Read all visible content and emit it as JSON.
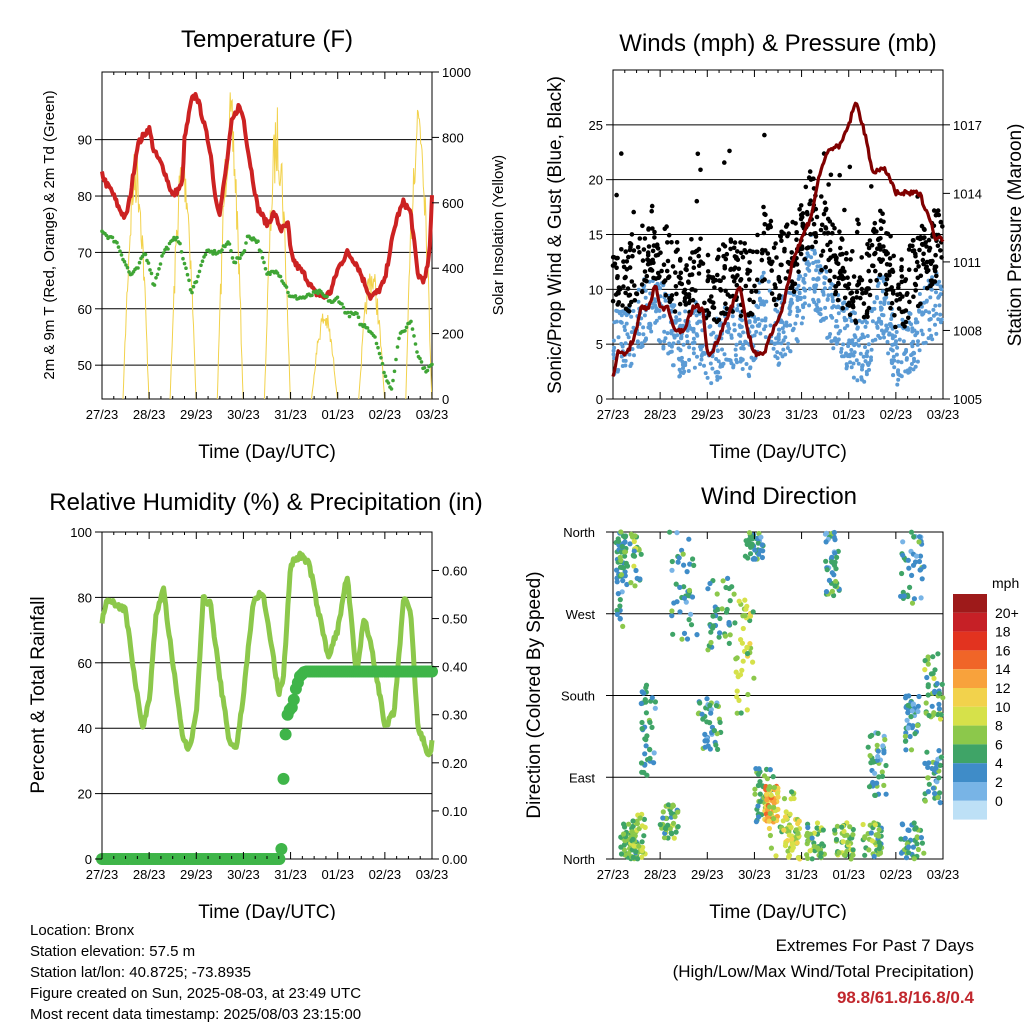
{
  "chart_data": [
    {
      "id": "temp",
      "type": "line",
      "title": "Temperature (F)",
      "xlabel": "Time (Day/UTC)",
      "ylabel": "2m & 9m T (Red, Orange) & 2m Td (Green)",
      "y2label": "Solar Insolation (Yellow)",
      "x_ticks": [
        "27/23",
        "28/23",
        "29/23",
        "30/23",
        "31/23",
        "01/23",
        "02/23",
        "03/23"
      ],
      "ylim": [
        44,
        102
      ],
      "y_ticks": [
        50,
        60,
        70,
        80,
        90
      ],
      "y2lim": [
        0,
        1000
      ],
      "y2_ticks": [
        0,
        200,
        400,
        600,
        800,
        1000
      ],
      "series": [
        {
          "color": "#cc2222",
          "x": [
            0,
            0.1,
            0.2,
            0.35,
            0.5,
            0.6,
            0.75,
            0.9,
            1.0,
            1.1,
            1.3,
            1.5,
            1.7,
            1.75,
            1.9,
            2.0,
            2.1,
            2.3,
            2.4,
            2.5,
            2.65,
            2.75,
            2.9,
            3.0,
            3.1,
            3.3,
            3.5,
            3.65,
            3.8,
            3.95,
            4.0,
            4.1,
            4.3,
            4.5,
            4.7,
            4.85,
            5.0,
            5.2,
            5.4,
            5.6,
            5.7,
            5.85,
            6.0,
            6.1,
            6.25,
            6.4,
            6.55,
            6.7,
            6.85,
            6.95,
            7.0
          ],
          "values": [
            84,
            82,
            81,
            78,
            76,
            80,
            89,
            91,
            92,
            88,
            85,
            80,
            82,
            90,
            97,
            98,
            95,
            88,
            80,
            77,
            86,
            93,
            96,
            94,
            88,
            78,
            75,
            77,
            74,
            75,
            70,
            68,
            66,
            63,
            62,
            63,
            67,
            70,
            68,
            64,
            62,
            63,
            65,
            70,
            76,
            79,
            77,
            66,
            65,
            70,
            80
          ]
        },
        {
          "color": "#3fa535",
          "x": [
            0,
            0.1,
            0.3,
            0.5,
            0.6,
            0.75,
            0.9,
            1.0,
            1.1,
            1.3,
            1.5,
            1.6,
            1.75,
            1.9,
            2.0,
            2.2,
            2.5,
            2.7,
            2.8,
            2.9,
            3.0,
            3.1,
            3.3,
            3.5,
            3.7,
            3.9,
            4.0,
            4.3,
            4.6,
            4.9,
            5.0,
            5.2,
            5.4,
            5.5,
            5.6,
            5.8,
            5.95,
            6.05,
            6.15,
            6.3,
            6.4,
            6.55,
            6.7,
            6.85,
            7.0
          ],
          "values": [
            74,
            73,
            72,
            68,
            66,
            67,
            70,
            68,
            64,
            70,
            72,
            73,
            68,
            63,
            65,
            70,
            70,
            72,
            68,
            69,
            70,
            73,
            72,
            66,
            67,
            64,
            62,
            62,
            63,
            61,
            62,
            59,
            59,
            57,
            57,
            55,
            50,
            47,
            46,
            55,
            56,
            58,
            52,
            49,
            50
          ]
        }
      ]
    },
    {
      "id": "wind",
      "type": "scatter",
      "title": "Winds (mph) & Pressure (mb)",
      "xlabel": "Time (Day/UTC)",
      "ylabel": "Sonic/Prop Wind & Gust (Blue, Black)",
      "y2label": "Station Pressure (Maroon)",
      "x_ticks": [
        "27/23",
        "28/23",
        "29/23",
        "30/23",
        "31/23",
        "01/23",
        "02/23",
        "03/23"
      ],
      "ylim": [
        0,
        30
      ],
      "y_ticks": [
        0,
        5,
        10,
        15,
        20,
        25
      ],
      "y2lim": [
        1005,
        1019.4
      ],
      "y2_ticks": [
        1005,
        1008,
        1011,
        1014,
        1017
      ],
      "series": [
        {
          "name": "",
          "color": "#800000",
          "x": [
            0,
            0.1,
            0.3,
            0.5,
            0.6,
            0.75,
            0.9,
            1.0,
            1.15,
            1.3,
            1.5,
            1.7,
            1.9,
            2.0,
            2.1,
            2.3,
            2.5,
            2.7,
            2.85,
            3.0,
            3.2,
            3.4,
            3.6,
            3.8,
            4.0,
            4.2,
            4.4,
            4.6,
            4.8,
            5.0,
            5.15,
            5.3,
            5.5,
            5.65,
            5.8,
            6.0,
            6.2,
            6.35,
            6.5,
            6.7,
            6.85,
            6.95,
            7.0
          ],
          "values": [
            1006,
            1007,
            1007,
            1008,
            1009,
            1009,
            1010,
            1009,
            1009,
            1008,
            1008,
            1009,
            1009,
            1007,
            1007,
            1008,
            1009,
            1010,
            1008,
            1007,
            1007,
            1008,
            1009,
            1011,
            1012,
            1013,
            1015,
            1016,
            1016,
            1017,
            1018,
            1017,
            1015,
            1015,
            1015,
            1014,
            1014,
            1014,
            1014,
            1013,
            1012,
            1012,
            1012
          ]
        }
      ]
    },
    {
      "id": "rh",
      "type": "line",
      "title": "Relative Humidity (%) & Precipitation (in)",
      "xlabel": "Time (Day/UTC)",
      "ylabel": "Percent & Total Rainfall",
      "x_ticks": [
        "27/23",
        "28/23",
        "29/23",
        "30/23",
        "31/23",
        "01/23",
        "02/23",
        "03/23"
      ],
      "ylim": [
        0,
        100
      ],
      "y_ticks": [
        0,
        20,
        40,
        60,
        80,
        100
      ],
      "y2lim": [
        0,
        0.68
      ],
      "y2_ticks": [
        0.0,
        0.1,
        0.2,
        0.3,
        0.4,
        0.5,
        0.6
      ],
      "series": [
        {
          "color": "#8cc84b",
          "x": [
            0,
            0.1,
            0.3,
            0.5,
            0.7,
            0.85,
            1.0,
            1.15,
            1.3,
            1.5,
            1.7,
            1.85,
            2.0,
            2.15,
            2.3,
            2.5,
            2.7,
            2.85,
            3.0,
            3.2,
            3.4,
            3.6,
            3.75,
            3.85,
            4.0,
            4.2,
            4.4,
            4.6,
            4.8,
            5.0,
            5.2,
            5.4,
            5.55,
            5.7,
            5.85,
            6.0,
            6.2,
            6.4,
            6.55,
            6.7,
            6.85,
            6.95,
            7.0
          ],
          "values": [
            72,
            80,
            78,
            76,
            55,
            40,
            48,
            75,
            83,
            60,
            38,
            33,
            45,
            80,
            78,
            55,
            36,
            34,
            50,
            78,
            82,
            65,
            50,
            56,
            90,
            93,
            90,
            75,
            62,
            70,
            87,
            55,
            74,
            66,
            54,
            40,
            45,
            80,
            75,
            40,
            35,
            31,
            36
          ]
        },
        {
          "color": "#3fb549",
          "x": [
            0,
            1,
            2,
            3,
            3.8,
            3.83,
            3.86,
            3.9,
            3.95,
            4.0,
            4.05,
            4.1,
            4.2,
            4.3,
            4.5,
            5,
            6,
            7
          ],
          "values": [
            0,
            0,
            0,
            0,
            0,
            0.1,
            0.2,
            0.27,
            0.31,
            0.31,
            0.32,
            0.35,
            0.38,
            0.39,
            0.39,
            0.39,
            0.39,
            0.39
          ]
        }
      ]
    },
    {
      "id": "dir",
      "type": "scatter",
      "title": "Wind Direction",
      "xlabel": "Time (Day/UTC)",
      "ylabel": "Direction (Colored By Speed)",
      "x_ticks": [
        "27/23",
        "28/23",
        "29/23",
        "30/23",
        "31/23",
        "01/23",
        "02/23",
        "03/23"
      ],
      "y_ticks": [
        "North",
        "East",
        "South",
        "West",
        "North"
      ],
      "legend": {
        "title": "mph",
        "labels": [
          "20+",
          "18",
          "16",
          "14",
          "12",
          "10",
          "8",
          "6",
          "4",
          "2",
          "0"
        ],
        "colors": [
          "#9e1a1a",
          "#c62026",
          "#e2331f",
          "#f06528",
          "#f8a23c",
          "#f2d24c",
          "#d6e14a",
          "#8cc84b",
          "#3fa467",
          "#3f8cc8",
          "#78b4e6",
          "#bde0f6"
        ]
      }
    }
  ],
  "info": {
    "location": "Location: Bronx",
    "elevation": "Station elevation: 57.5 m",
    "latlon": "Station lat/lon: 40.8725; -73.8935",
    "created": "Figure created on Sun, 2025-08-03, at 23:49 UTC",
    "recent": "Most recent data timestamp: 2025/08/03 23:15:00"
  },
  "extremes": {
    "line1": "Extremes For Past 7 Days",
    "line2": "(High/Low/Max Wind/Total Precipitation)",
    "value": "98.8/61.8/16.8/0.4"
  }
}
